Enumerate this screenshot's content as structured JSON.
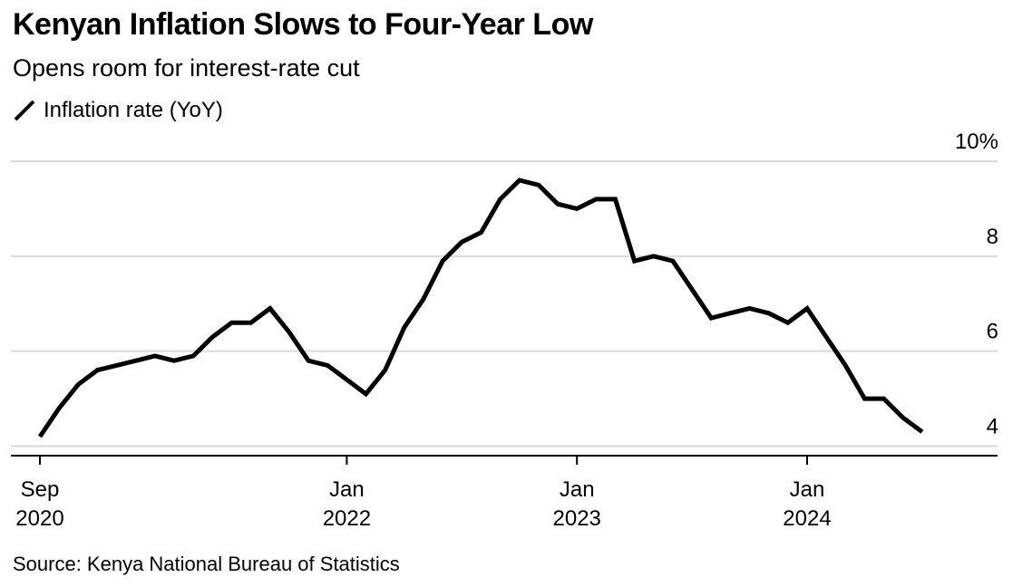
{
  "title": "Kenyan Inflation Slows to Four-Year Low",
  "subtitle": "Opens room for interest-rate cut",
  "source": "Source: Kenya National Bureau of Statistics",
  "colors": {
    "line": "#000000",
    "grid": "#d9d9d9",
    "axis": "#000000"
  },
  "chart_data": {
    "type": "line",
    "series": [
      {
        "name": "Inflation rate (YoY)",
        "x": [
          "2020-09",
          "2020-10",
          "2020-11",
          "2020-12",
          "2021-01",
          "2021-02",
          "2021-03",
          "2021-04",
          "2021-05",
          "2021-06",
          "2021-07",
          "2021-08",
          "2021-09",
          "2021-10",
          "2021-11",
          "2021-12",
          "2022-01",
          "2022-02",
          "2022-03",
          "2022-04",
          "2022-05",
          "2022-06",
          "2022-07",
          "2022-08",
          "2022-09",
          "2022-10",
          "2022-11",
          "2022-12",
          "2023-01",
          "2023-02",
          "2023-03",
          "2023-04",
          "2023-05",
          "2023-06",
          "2023-07",
          "2023-08",
          "2023-09",
          "2023-10",
          "2023-11",
          "2023-12",
          "2024-01",
          "2024-02",
          "2024-03",
          "2024-04",
          "2024-05",
          "2024-06",
          "2024-07"
        ],
        "values": [
          4.2,
          4.8,
          5.3,
          5.6,
          5.7,
          5.8,
          5.9,
          5.8,
          5.9,
          6.3,
          6.6,
          6.6,
          6.9,
          6.4,
          5.8,
          5.7,
          5.4,
          5.1,
          5.6,
          6.5,
          7.1,
          7.9,
          8.3,
          8.5,
          9.2,
          9.6,
          9.5,
          9.1,
          9.0,
          9.2,
          9.2,
          7.9,
          8.0,
          7.9,
          7.3,
          6.7,
          6.8,
          6.9,
          6.8,
          6.6,
          6.9,
          6.3,
          5.7,
          5.0,
          5.0,
          4.6,
          4.3
        ]
      }
    ],
    "x_ticks": [
      {
        "x": "2020-09",
        "line1": "Sep",
        "line2": "2020"
      },
      {
        "x": "2022-01",
        "line1": "Jan",
        "line2": "2022"
      },
      {
        "x": "2023-01",
        "line1": "Jan",
        "line2": "2023"
      },
      {
        "x": "2024-01",
        "line1": "Jan",
        "line2": "2024"
      }
    ],
    "y_ticks": [
      {
        "value": 4,
        "label": "4"
      },
      {
        "value": 6,
        "label": "6"
      },
      {
        "value": 8,
        "label": "8"
      },
      {
        "value": 10,
        "label": "10%"
      }
    ],
    "ylim": [
      3.8,
      10
    ],
    "xlim": [
      "2020-08",
      "2024-12"
    ],
    "grid": true,
    "legend_position": "top-left"
  }
}
